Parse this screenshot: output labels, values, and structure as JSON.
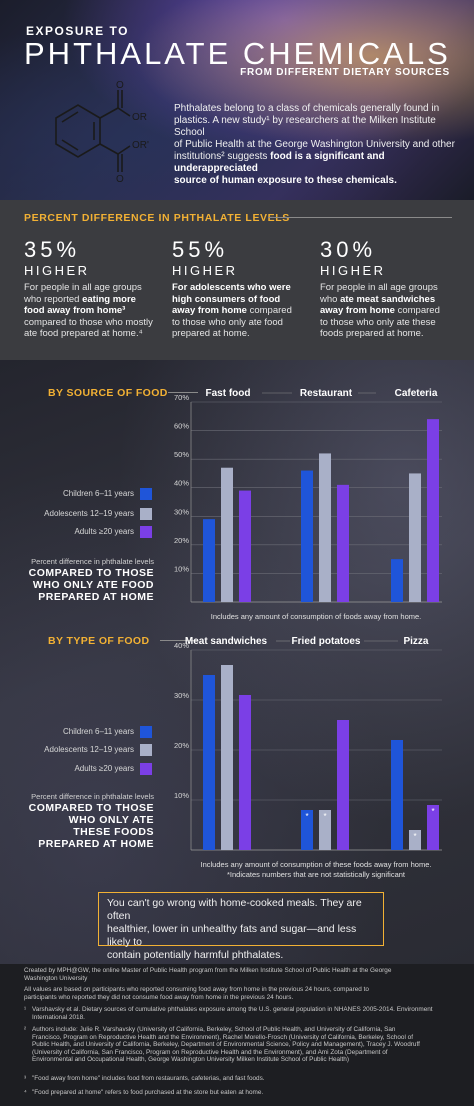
{
  "header": {
    "title_small": "EXPOSURE TO",
    "title_big": "PHTHALATE CHEMICALS",
    "title_sub": "FROM DIFFERENT DIETARY SOURCES",
    "molecule_labels": [
      "OR",
      "OR'",
      "O",
      "O"
    ],
    "intro_lines": [
      "Phthalates belong to a class of chemicals generally found in",
      "plastics. A new study¹ by researchers at the Milken Institute School",
      "of Public Health at the George Washington University and other",
      "institutions² suggests ",
      "food is a significant and underappreciated",
      "source of human exposure to these chemicals."
    ]
  },
  "stats": {
    "heading": "PERCENT DIFFERENCE IN PHTHALATE LEVELS",
    "items": [
      {
        "pct": "35%",
        "higher": "HIGHER",
        "lines": [
          {
            "t": "For people in all age groups",
            "b": false
          },
          {
            "t": "who reported ",
            "b": false,
            "cont": "eating more"
          },
          {
            "t": "food away from home³",
            "b": true
          },
          {
            "t": "compared to those who mostly",
            "b": false
          },
          {
            "t": "ate food prepared at home.⁴",
            "b": false
          }
        ]
      },
      {
        "pct": "55%",
        "higher": "HIGHER",
        "lines": [
          {
            "t": "For adolescents who were",
            "b": true
          },
          {
            "t": "high consumers of food",
            "b": true
          },
          {
            "t": "away from home",
            "b": true,
            "cont": " compared"
          },
          {
            "t": "to those who only ate food",
            "b": false
          },
          {
            "t": "prepared at home.",
            "b": false
          }
        ]
      },
      {
        "pct": "30%",
        "higher": "HIGHER",
        "lines": [
          {
            "t": "For people in all age groups",
            "b": false
          },
          {
            "t": "who ",
            "b": false,
            "cont": "ate meat sandwiches"
          },
          {
            "t": "away from home",
            "b": true,
            "cont": " compared"
          },
          {
            "t": "to those who only ate these",
            "b": false
          },
          {
            "t": "foods prepared at home.",
            "b": false
          }
        ]
      }
    ]
  },
  "colors": {
    "children": "#1f55d9",
    "adolescents": "#a9b0c8",
    "adults": "#7b3fe6",
    "accent": "#f2b134"
  },
  "chart_data": [
    {
      "type": "bar",
      "title": "BY SOURCE OF FOOD",
      "categories": [
        "Fast food",
        "Restaurant",
        "Cafeteria"
      ],
      "yticks": [
        "10%",
        "20%",
        "30%",
        "40%",
        "50%",
        "60%",
        "70%"
      ],
      "ylim": [
        0,
        70
      ],
      "series": [
        {
          "name": "Children 6–11 years",
          "values": [
            29,
            46,
            15
          ]
        },
        {
          "name": "Adolescents 12–19 years",
          "values": [
            47,
            52,
            45
          ]
        },
        {
          "name": "Adults ≥20 years",
          "values": [
            39,
            41,
            64
          ]
        }
      ],
      "desc_small": "Percent difference in phthalate levels",
      "desc_big": [
        "COMPARED TO THOSE",
        "WHO ONLY ATE FOOD",
        "PREPARED AT HOME"
      ],
      "note": "Includes any amount of consumption of foods away from home."
    },
    {
      "type": "bar",
      "title": "BY TYPE OF FOOD",
      "categories": [
        "Meat sandwiches",
        "Fried potatoes",
        "Pizza"
      ],
      "yticks": [
        "10%",
        "20%",
        "30%",
        "40%"
      ],
      "ylim": [
        0,
        40
      ],
      "series": [
        {
          "name": "Children 6–11 years",
          "values": [
            35,
            8,
            22
          ],
          "not_significant": [
            false,
            true,
            false
          ]
        },
        {
          "name": "Adolescents 12–19 years",
          "values": [
            37,
            8,
            4
          ],
          "not_significant": [
            false,
            true,
            true
          ]
        },
        {
          "name": "Adults ≥20 years",
          "values": [
            31,
            26,
            9
          ],
          "not_significant": [
            false,
            false,
            true
          ]
        }
      ],
      "desc_small": "Percent difference in phthalate levels",
      "desc_big": [
        "COMPARED TO THOSE",
        "WHO ONLY ATE",
        "THESE FOODS",
        "PREPARED AT HOME"
      ],
      "note": "Includes any amount of consumption of these foods away from home.",
      "note2": "*Indicates numbers that are not statistically significant",
      "marker": "*"
    }
  ],
  "callout": {
    "lines": [
      "You can't go wrong with home-cooked meals. They are often",
      "healthier, lower in unhealthy fats and sugar—and  less likely to",
      "contain potentially harmful phthalates."
    ]
  },
  "footer": {
    "created": [
      "Created by MPH@GW, the online Master of Public Health program from the Milken Institute School of Public Health at the George",
      "Washington University"
    ],
    "note": [
      "All values are based on participants who reported consuming food away from home in the previous 24 hours, compared to",
      "participants who reported they did not consume food away from home in the previous 24 hours."
    ],
    "fn1_sup": "¹",
    "fn1": [
      "Varshavsky et al. Dietary sources of cumulative phthalates exposure among the U.S. general population in NHANES 2005-2014. Environment",
      "International 2018."
    ],
    "fn2_sup": "²",
    "fn2": [
      "Authors include: Julie R. Varshavsky (University of California, Berkeley, School of Public Health, and University of California, San",
      "Francisco, Program on Reproductive Health and the Environment), Rachel Morello-Frosch (University of California, Berkeley, School of",
      "Public Health, and University of California, Berkeley, Department of Environmental Science, Policy and Management), Tracey J. Woodruff",
      "(University of California, San Francisco, Program on Reproductive Health and the Environment), and Ami Zota (Department of",
      "Environmental and Occupational Health, George Washington University Milken Institute School of Public Health)"
    ],
    "fn3_sup": "³",
    "fn3": "\"Food away from home\" includes food from restaurants, cafeterias, and fast foods.",
    "fn4_sup": "⁴",
    "fn4": "\"Food prepared at home\" refers to food purchased at the store but eaten at home."
  }
}
